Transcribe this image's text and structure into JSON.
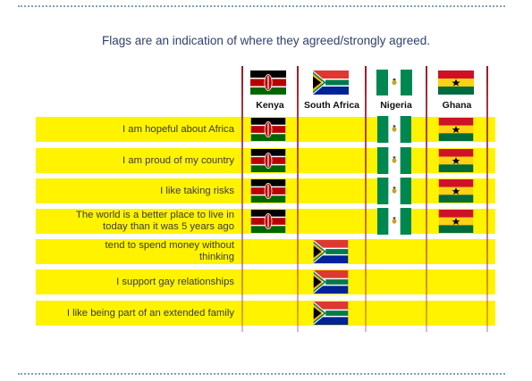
{
  "title": "Flags are an indication of where they agreed/strongly agreed.",
  "columns": [
    "Kenya",
    "South Africa",
    "Nigeria",
    "Ghana"
  ],
  "rows": [
    {
      "line1": "I am hopeful about Africa",
      "line2": "",
      "flags": [
        "Kenya",
        "Nigeria",
        "Ghana"
      ]
    },
    {
      "line1": "I am proud of my country",
      "line2": "",
      "flags": [
        "Kenya",
        "Nigeria",
        "Ghana"
      ]
    },
    {
      "line1": "I like taking risks",
      "line2": "",
      "flags": [
        "Kenya",
        "Nigeria",
        "Ghana"
      ]
    },
    {
      "line1": "The world is a better place to live in",
      "line2": "today than it was 5 years ago",
      "flags": [
        "Kenya",
        "Nigeria",
        "Ghana"
      ]
    },
    {
      "line1": "tend to spend money without",
      "line2": "thinking",
      "flags": [
        "South Africa"
      ]
    },
    {
      "line1": "I support gay relationships",
      "line2": "",
      "flags": [
        "South Africa"
      ]
    },
    {
      "line1": "I like being part of an extended family",
      "line2": "",
      "flags": [
        "South Africa"
      ]
    }
  ],
  "colors": {
    "row_band": "#fff300",
    "divider": "#9b1b2a",
    "title": "#2f3f6e"
  }
}
